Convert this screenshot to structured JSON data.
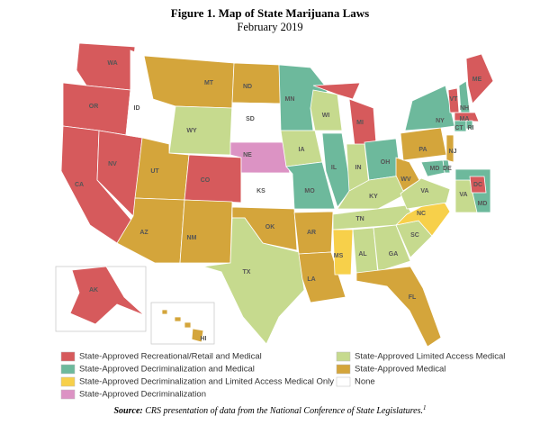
{
  "header": {
    "title": "Figure 1. Map of State Marijuana Laws",
    "subtitle": "February 2019"
  },
  "map": {
    "categories": [
      {
        "label": "State-Approved Recreational/Retail and Medical",
        "color": "#d65a5c"
      },
      {
        "label": "State-Approved Decriminalization and Medical",
        "color": "#6db99c"
      },
      {
        "label": "State-Approved Decriminalization and Limited Access Medical Only",
        "color": "#f7d04a"
      },
      {
        "label": "State-Approved Decriminalization",
        "color": "#dc93c4"
      },
      {
        "label": "State-Approved Limited Access Medical",
        "color": "#c6da8e"
      },
      {
        "label": "State-Approved Medical",
        "color": "#d4a53b"
      },
      {
        "label": "None",
        "color": "#ffffff"
      }
    ],
    "states": [
      {
        "label": "WA",
        "category": 0
      },
      {
        "label": "OR",
        "category": 0
      },
      {
        "label": "CA",
        "category": 0
      },
      {
        "label": "NV",
        "category": 0
      },
      {
        "label": "ID",
        "category": 6
      },
      {
        "label": "MT",
        "category": 5
      },
      {
        "label": "WY",
        "category": 4
      },
      {
        "label": "UT",
        "category": 5
      },
      {
        "label": "CO",
        "category": 0
      },
      {
        "label": "AZ",
        "category": 5
      },
      {
        "label": "NM",
        "category": 5
      },
      {
        "label": "ND",
        "category": 5
      },
      {
        "label": "SD",
        "category": 6
      },
      {
        "label": "NE",
        "category": 3
      },
      {
        "label": "KS",
        "category": 6
      },
      {
        "label": "OK",
        "category": 5
      },
      {
        "label": "TX",
        "category": 4
      },
      {
        "label": "MN",
        "category": 1
      },
      {
        "label": "IA",
        "category": 4
      },
      {
        "label": "MO",
        "category": 1
      },
      {
        "label": "AR",
        "category": 5
      },
      {
        "label": "LA",
        "category": 5
      },
      {
        "label": "WI",
        "category": 4
      },
      {
        "label": "IL",
        "category": 1
      },
      {
        "label": "MI",
        "category": 0
      },
      {
        "label": "IN",
        "category": 4
      },
      {
        "label": "OH",
        "category": 1
      },
      {
        "label": "KY",
        "category": 4
      },
      {
        "label": "TN",
        "category": 4
      },
      {
        "label": "MS",
        "category": 2
      },
      {
        "label": "AL",
        "category": 4
      },
      {
        "label": "GA",
        "category": 4
      },
      {
        "label": "FL",
        "category": 5
      },
      {
        "label": "SC",
        "category": 4
      },
      {
        "label": "NC",
        "category": 2
      },
      {
        "label": "VA",
        "category": 4
      },
      {
        "label": "WV",
        "category": 5
      },
      {
        "label": "PA",
        "category": 5
      },
      {
        "label": "NY",
        "category": 1
      },
      {
        "label": "VT",
        "category": 0
      },
      {
        "label": "NH",
        "category": 1
      },
      {
        "label": "ME",
        "category": 0
      },
      {
        "label": "MA",
        "category": 0
      },
      {
        "label": "CT",
        "category": 1
      },
      {
        "label": "RI",
        "category": 1
      },
      {
        "label": "NJ",
        "category": 5
      },
      {
        "label": "DE",
        "category": 1
      },
      {
        "label": "MD",
        "category": 1
      },
      {
        "label": "MD",
        "category": 1
      },
      {
        "label": "VA",
        "category": 4
      },
      {
        "label": "DC",
        "category": 0
      },
      {
        "label": "AK",
        "category": 0
      },
      {
        "label": "HI",
        "category": 5
      }
    ]
  },
  "source": {
    "label": "Source:",
    "text": "CRS presentation of data from the National Conference of State Legislatures.",
    "note": "1"
  }
}
